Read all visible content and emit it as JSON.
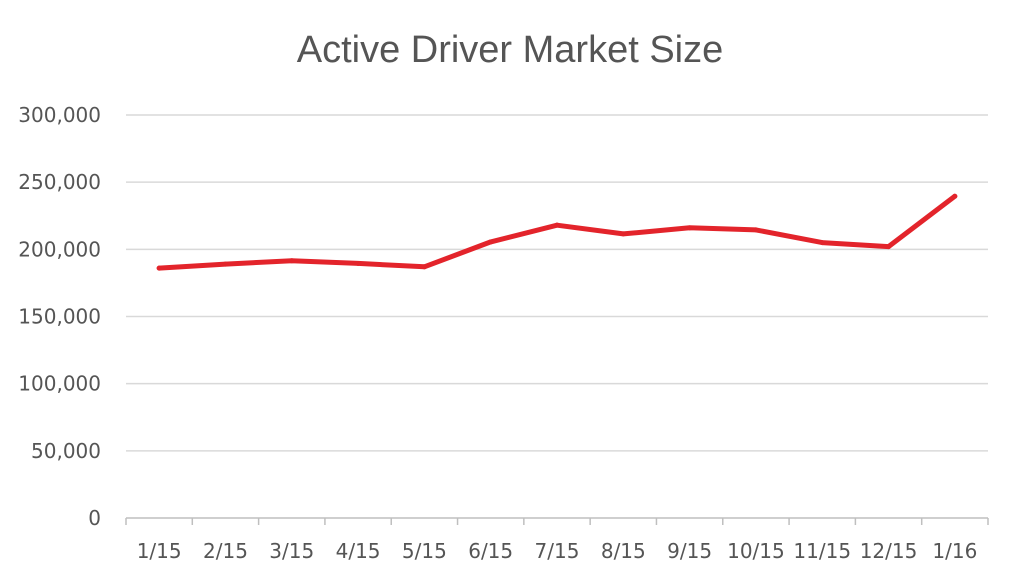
{
  "chart_data": {
    "type": "line",
    "title": "Active Driver Market Size",
    "xlabel": "",
    "ylabel": "",
    "categories": [
      "1/15",
      "2/15",
      "3/15",
      "4/15",
      "5/15",
      "6/15",
      "7/15",
      "8/15",
      "9/15",
      "10/15",
      "11/15",
      "12/15",
      "1/16"
    ],
    "series": [
      {
        "values": [
          186000,
          189000,
          191500,
          189500,
          187000,
          205500,
          218000,
          211500,
          216000,
          214500,
          205000,
          202000,
          239500
        ]
      }
    ],
    "ylim": [
      0,
      300000
    ],
    "yticks": [
      0,
      50000,
      100000,
      150000,
      200000,
      250000,
      300000
    ],
    "ytick_labels": [
      "0",
      "50,000",
      "100,000",
      "150,000",
      "200,000",
      "250,000",
      "300,000"
    ],
    "grid": true,
    "legend": "none",
    "colors": {
      "line": "#e3242b"
    }
  }
}
